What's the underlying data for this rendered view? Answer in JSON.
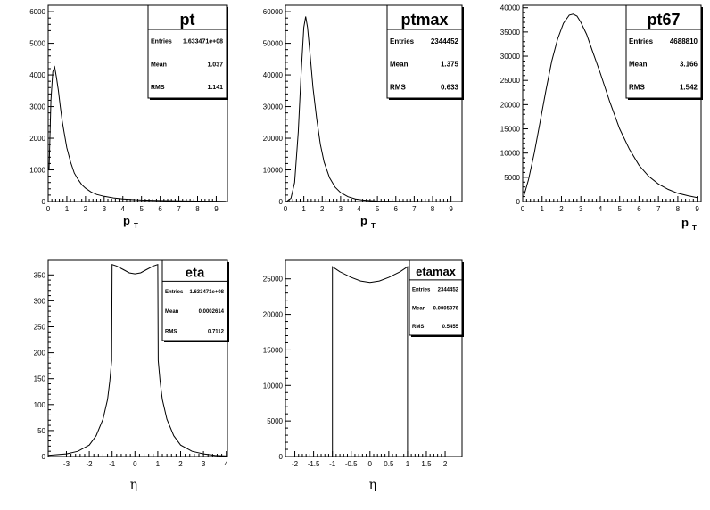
{
  "chart_data": [
    {
      "type": "histogram",
      "title": "pt",
      "xlabel": "p",
      "xlabel_sub": "T",
      "xlim": [
        0,
        9.6
      ],
      "ylim": [
        0,
        6200
      ],
      "x_ticks": [
        0,
        1,
        2,
        3,
        4,
        5,
        6,
        7,
        8,
        9
      ],
      "y_ticks": [
        0,
        1000,
        2000,
        3000,
        4000,
        5000,
        6000
      ],
      "stats": [
        {
          "label": "Entries",
          "value": "1.633471e+08"
        },
        {
          "label": "Mean",
          "value": "1.037"
        },
        {
          "label": "RMS",
          "value": "1.141"
        }
      ],
      "series": [
        {
          "x": [
            0.05,
            0.15,
            0.25,
            0.35,
            0.45,
            0.55,
            0.65,
            0.75,
            0.85,
            1.0,
            1.2,
            1.4,
            1.6,
            1.8,
            2.0,
            2.3,
            2.6,
            3.0,
            3.5,
            4.0,
            4.5,
            5.0,
            6.0,
            7.0,
            8.0,
            9.0,
            9.5
          ],
          "y": [
            1000,
            3200,
            4100,
            4250,
            3900,
            3500,
            3000,
            2550,
            2200,
            1700,
            1250,
            900,
            700,
            530,
            420,
            300,
            220,
            160,
            110,
            80,
            60,
            45,
            30,
            20,
            15,
            10,
            8
          ]
        }
      ]
    },
    {
      "type": "histogram",
      "title": "ptmax",
      "xlabel": "p",
      "xlabel_sub": "T",
      "xlim": [
        0,
        9.6
      ],
      "ylim": [
        0,
        62000
      ],
      "x_ticks": [
        0,
        1,
        2,
        3,
        4,
        5,
        6,
        7,
        8,
        9
      ],
      "y_ticks": [
        0,
        10000,
        20000,
        30000,
        40000,
        50000,
        60000
      ],
      "stats": [
        {
          "label": "Entries",
          "value": "2344452"
        },
        {
          "label": "Mean",
          "value": "1.375"
        },
        {
          "label": "RMS",
          "value": "0.633"
        }
      ],
      "series": [
        {
          "x": [
            0.05,
            0.3,
            0.5,
            0.7,
            0.85,
            1.0,
            1.1,
            1.2,
            1.35,
            1.5,
            1.7,
            1.9,
            2.1,
            2.4,
            2.7,
            3.0,
            3.4,
            3.8,
            4.2,
            5.0,
            6.0,
            7.0,
            8.0,
            9.5
          ],
          "y": [
            0,
            1000,
            6000,
            22000,
            40000,
            55000,
            58500,
            55000,
            46000,
            36000,
            26000,
            18000,
            12500,
            7500,
            4500,
            2800,
            1500,
            800,
            450,
            150,
            50,
            20,
            10,
            0
          ]
        }
      ]
    },
    {
      "type": "histogram",
      "title": "pt67",
      "xlabel": "p",
      "xlabel_sub": "T",
      "xlim": [
        0,
        9.2
      ],
      "ylim": [
        0,
        40500
      ],
      "x_ticks": [
        0,
        1,
        2,
        3,
        4,
        5,
        6,
        7,
        8,
        9
      ],
      "y_ticks": [
        0,
        5000,
        10000,
        15000,
        20000,
        25000,
        30000,
        35000,
        40000
      ],
      "stats": [
        {
          "label": "Entries",
          "value": "4688810"
        },
        {
          "label": "Mean",
          "value": "3.166"
        },
        {
          "label": "RMS",
          "value": "1.542"
        }
      ],
      "series": [
        {
          "x": [
            0.05,
            0.3,
            0.6,
            0.9,
            1.2,
            1.5,
            1.8,
            2.1,
            2.4,
            2.6,
            2.8,
            3.0,
            3.3,
            3.6,
            4.0,
            4.5,
            5.0,
            5.5,
            6.0,
            6.5,
            7.0,
            7.5,
            8.0,
            8.5,
            9.0
          ],
          "y": [
            1000,
            4500,
            10000,
            16500,
            23000,
            29000,
            33500,
            36800,
            38500,
            38700,
            38300,
            37000,
            34500,
            31000,
            26500,
            20500,
            15000,
            10800,
            7500,
            5200,
            3600,
            2500,
            1700,
            1200,
            800
          ]
        }
      ]
    },
    {
      "type": "histogram",
      "title": "eta",
      "xlabel": "η",
      "xlabel_sub": "",
      "xlim": [
        -3.8,
        4.05
      ],
      "ylim": [
        0,
        378
      ],
      "x_ticks": [
        -3,
        -2,
        -1,
        0,
        1,
        2,
        3,
        4
      ],
      "y_ticks": [
        0,
        50,
        100,
        150,
        200,
        250,
        300,
        350
      ],
      "stats": [
        {
          "label": "Entries",
          "value": "1.633471e+08"
        },
        {
          "label": "Mean",
          "value": "0.0002614"
        },
        {
          "label": "RMS",
          "value": "0.7112"
        }
      ],
      "series": [
        {
          "x": [
            -3.8,
            -3.0,
            -2.5,
            -2.0,
            -1.7,
            -1.4,
            -1.2,
            -1.1,
            -1.02,
            -1.0,
            -0.8,
            -0.5,
            -0.25,
            0.0,
            0.25,
            0.5,
            0.8,
            1.0,
            1.02,
            1.1,
            1.2,
            1.4,
            1.7,
            2.0,
            2.5,
            3.0,
            3.5,
            4.0
          ],
          "y": [
            2,
            5,
            10,
            22,
            40,
            72,
            110,
            145,
            185,
            370,
            367,
            360,
            354,
            352,
            354,
            360,
            367,
            370,
            185,
            145,
            110,
            72,
            40,
            22,
            10,
            5,
            2,
            1
          ]
        }
      ]
    },
    {
      "type": "histogram",
      "title": "etamax",
      "xlabel": "η",
      "xlabel_sub": "",
      "xlim": [
        -2.25,
        2.45
      ],
      "ylim": [
        0,
        27600
      ],
      "x_ticks": [
        -2,
        -1.5,
        -1,
        -0.5,
        0,
        0.5,
        1,
        1.5,
        2
      ],
      "y_ticks": [
        0,
        5000,
        10000,
        15000,
        20000,
        25000
      ],
      "stats": [
        {
          "label": "Entries",
          "value": "2344452"
        },
        {
          "label": "Mean",
          "value": "0.0005076"
        },
        {
          "label": "RMS",
          "value": "0.5455"
        }
      ],
      "series": [
        {
          "x": [
            -2.25,
            -1.0,
            -1.0,
            -0.8,
            -0.5,
            -0.25,
            0.0,
            0.25,
            0.5,
            0.8,
            1.0,
            1.0,
            2.45
          ],
          "y": [
            0,
            0,
            26700,
            26000,
            25200,
            24700,
            24500,
            24700,
            25200,
            26000,
            26700,
            0,
            0
          ]
        }
      ]
    }
  ]
}
